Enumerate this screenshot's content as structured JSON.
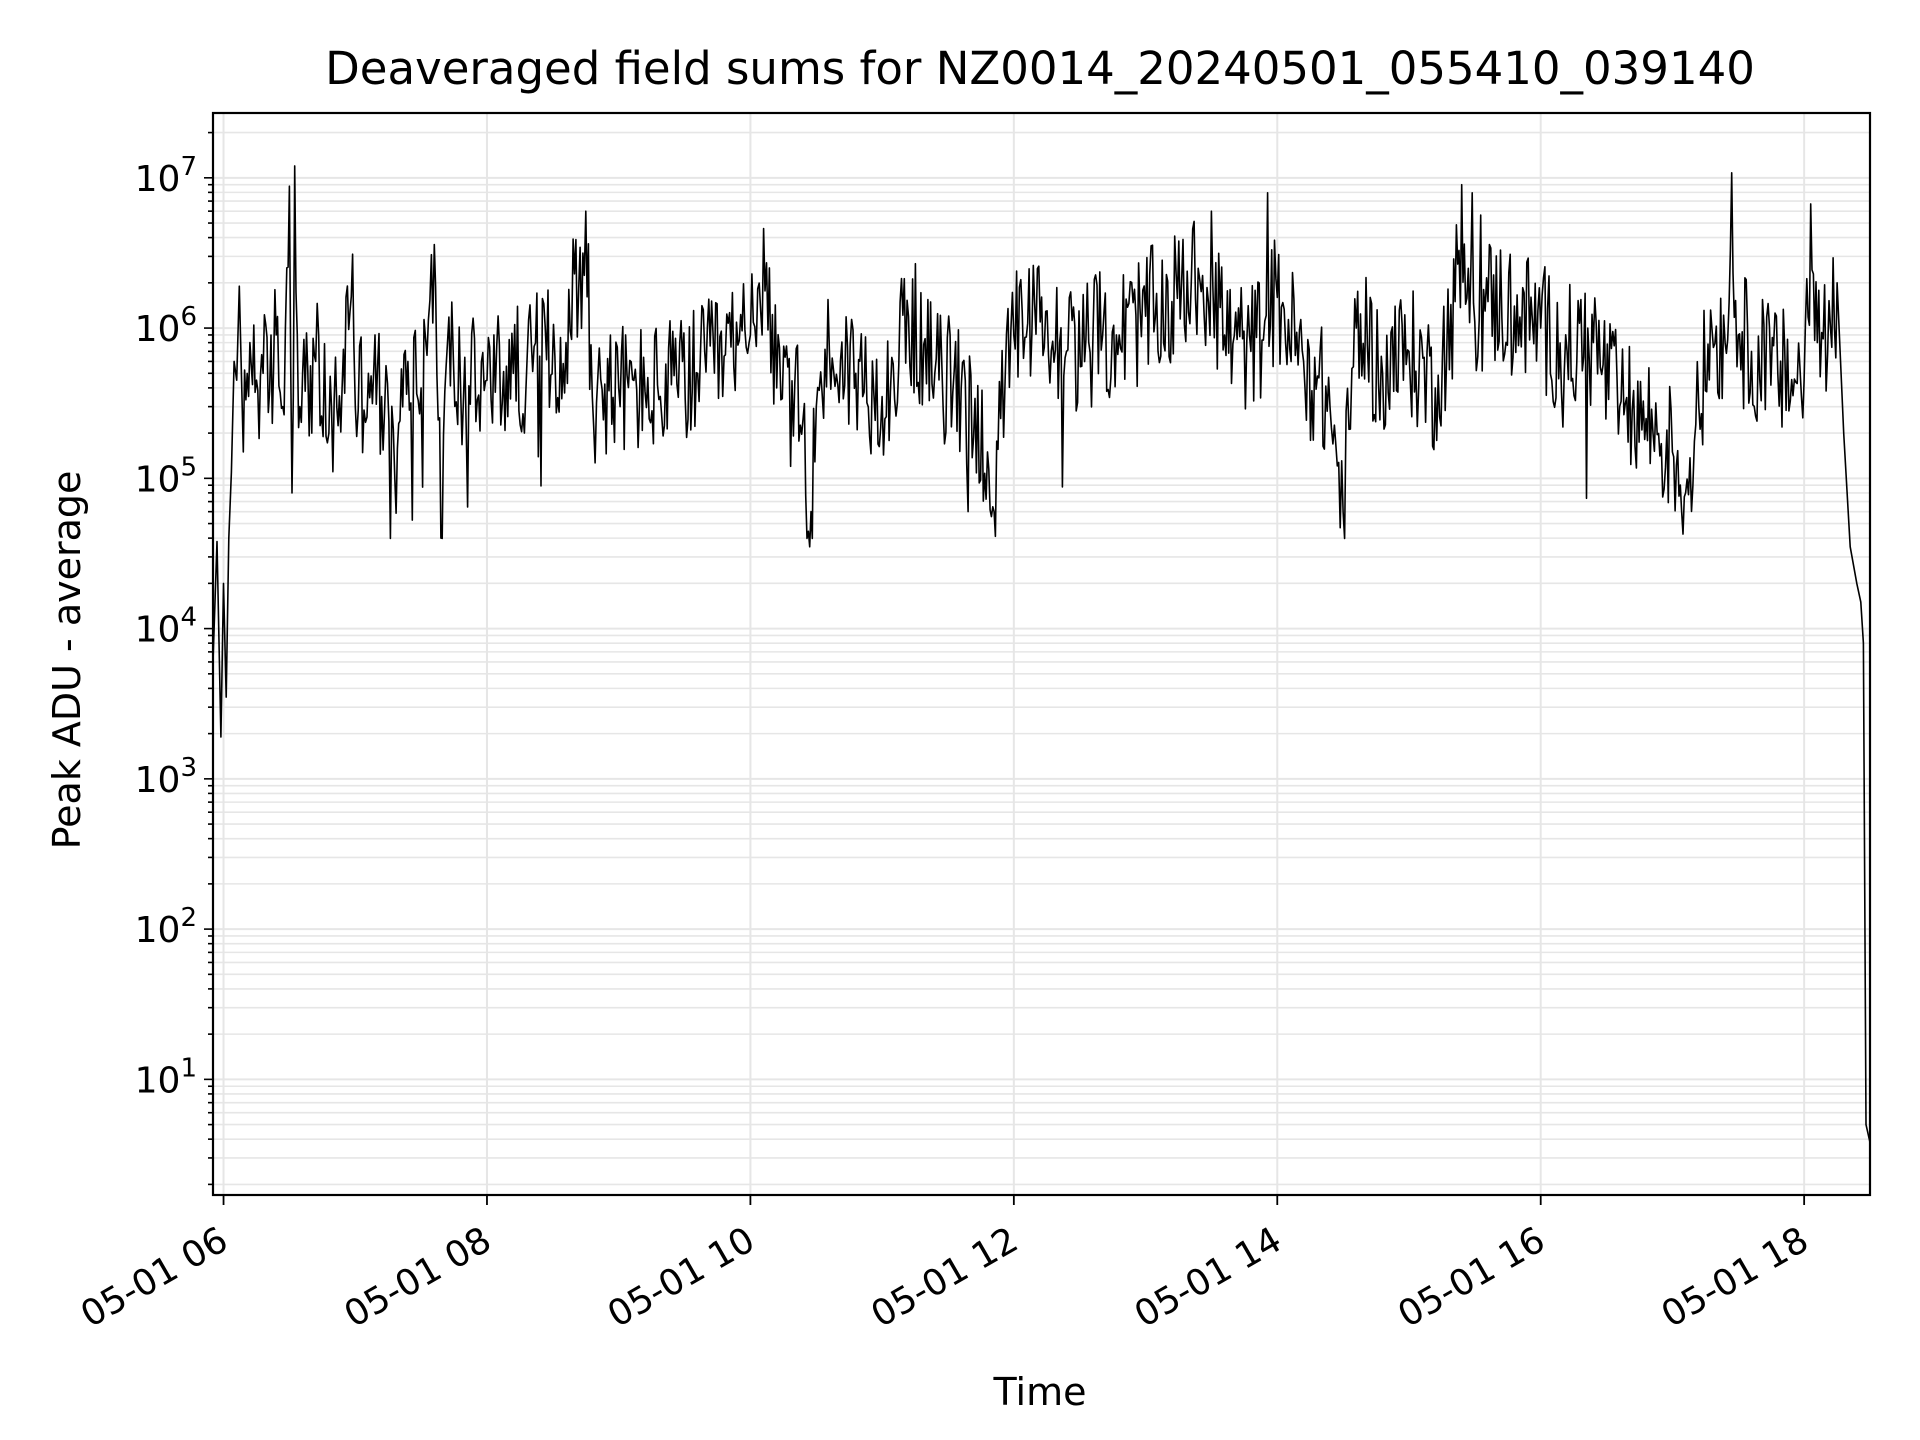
{
  "chart_data": {
    "type": "line",
    "title": "Deaveraged field sums for NZ0014_20240501_055410_039140",
    "xlabel": "Time",
    "ylabel": "Peak ADU - average",
    "yscale": "log",
    "ylim": [
      1.7,
      27000000
    ],
    "xlim_hours": [
      5.92,
      18.5
    ],
    "grid": true,
    "grid_which": "both",
    "line_color": "#000000",
    "grid_color": "#e6e6e6",
    "x_ticks": [
      {
        "hour": 6,
        "label": "05-01 06"
      },
      {
        "hour": 8,
        "label": "05-01 08"
      },
      {
        "hour": 10,
        "label": "05-01 10"
      },
      {
        "hour": 12,
        "label": "05-01 12"
      },
      {
        "hour": 14,
        "label": "05-01 14"
      },
      {
        "hour": 16,
        "label": "05-01 16"
      },
      {
        "hour": 18,
        "label": "05-01 18"
      }
    ],
    "y_ticks": [
      {
        "value": 10,
        "base": "10",
        "exp": "1"
      },
      {
        "value": 100,
        "base": "10",
        "exp": "2"
      },
      {
        "value": 1000,
        "base": "10",
        "exp": "3"
      },
      {
        "value": 10000,
        "base": "10",
        "exp": "4"
      },
      {
        "value": 100000,
        "base": "10",
        "exp": "5"
      },
      {
        "value": 1000000,
        "base": "10",
        "exp": "6"
      },
      {
        "value": 10000000,
        "base": "10",
        "exp": "7"
      }
    ],
    "series": [
      {
        "x_hours": [
          5.92,
          5.95,
          5.98,
          6.0,
          6.02,
          6.04,
          6.06,
          6.08,
          6.1,
          6.12,
          6.15,
          6.2,
          6.25,
          6.3,
          6.35,
          6.4,
          6.45,
          6.5,
          6.52,
          6.54,
          6.56,
          6.58,
          6.6,
          6.62,
          6.7,
          6.8,
          6.9,
          6.98,
          7.0,
          7.1,
          7.2,
          7.3,
          7.4,
          7.5,
          7.6,
          7.65,
          7.7,
          7.8,
          8.0,
          8.2,
          8.4,
          8.6,
          8.75,
          8.8,
          9.0,
          9.2,
          9.4,
          9.6,
          9.8,
          10.0,
          10.1,
          10.2,
          10.4,
          10.45,
          10.5,
          10.6,
          10.8,
          11.0,
          11.2,
          11.4,
          11.6,
          11.8,
          11.85,
          11.9,
          12.0,
          12.2,
          12.4,
          12.6,
          12.8,
          13.0,
          13.2,
          13.4,
          13.5,
          13.6,
          13.8,
          14.0,
          14.2,
          14.4,
          14.5,
          14.6,
          14.8,
          15.0,
          15.2,
          15.35,
          15.4,
          15.45,
          15.5,
          15.6,
          15.8,
          16.0,
          16.2,
          16.4,
          16.6,
          16.8,
          17.0,
          17.1,
          17.2,
          17.3,
          17.4,
          17.45,
          17.5,
          17.6,
          17.8,
          18.0,
          18.05,
          18.1,
          18.2,
          18.25,
          18.3,
          18.35,
          18.4,
          18.43,
          18.45,
          18.47,
          18.5
        ],
        "y": [
          6000,
          38000,
          1900,
          20000,
          3500,
          40000,
          110000,
          600000,
          450000,
          1900000,
          150000,
          800000,
          450000,
          500000,
          380000,
          900000,
          300000,
          8800000,
          80000,
          12000000,
          900000,
          300000,
          500000,
          380000,
          600000,
          200000,
          400000,
          3100000,
          300000,
          500000,
          350000,
          100000,
          600000,
          400000,
          3600000,
          40000,
          800000,
          400000,
          450000,
          500000,
          650000,
          800000,
          6000000,
          350000,
          400000,
          380000,
          420000,
          500000,
          650000,
          900000,
          4600000,
          400000,
          250000,
          35000,
          300000,
          700000,
          500000,
          350000,
          1200000,
          500000,
          400000,
          150000,
          60000,
          250000,
          900000,
          1100000,
          700000,
          850000,
          900000,
          1200000,
          1500000,
          2500000,
          6000000,
          900000,
          700000,
          1600000,
          600000,
          300000,
          60000,
          1000000,
          500000,
          700000,
          400000,
          1500000,
          9000000,
          2500000,
          1100000,
          1500000,
          1400000,
          1000000,
          700000,
          800000,
          300000,
          250000,
          150000,
          80000,
          300000,
          1000000,
          800000,
          10800000,
          900000,
          700000,
          500000,
          450000,
          6700000,
          800000,
          1000000,
          2000000,
          200000,
          35000,
          20000,
          15000,
          8000,
          5,
          3.8
        ]
      }
    ]
  }
}
